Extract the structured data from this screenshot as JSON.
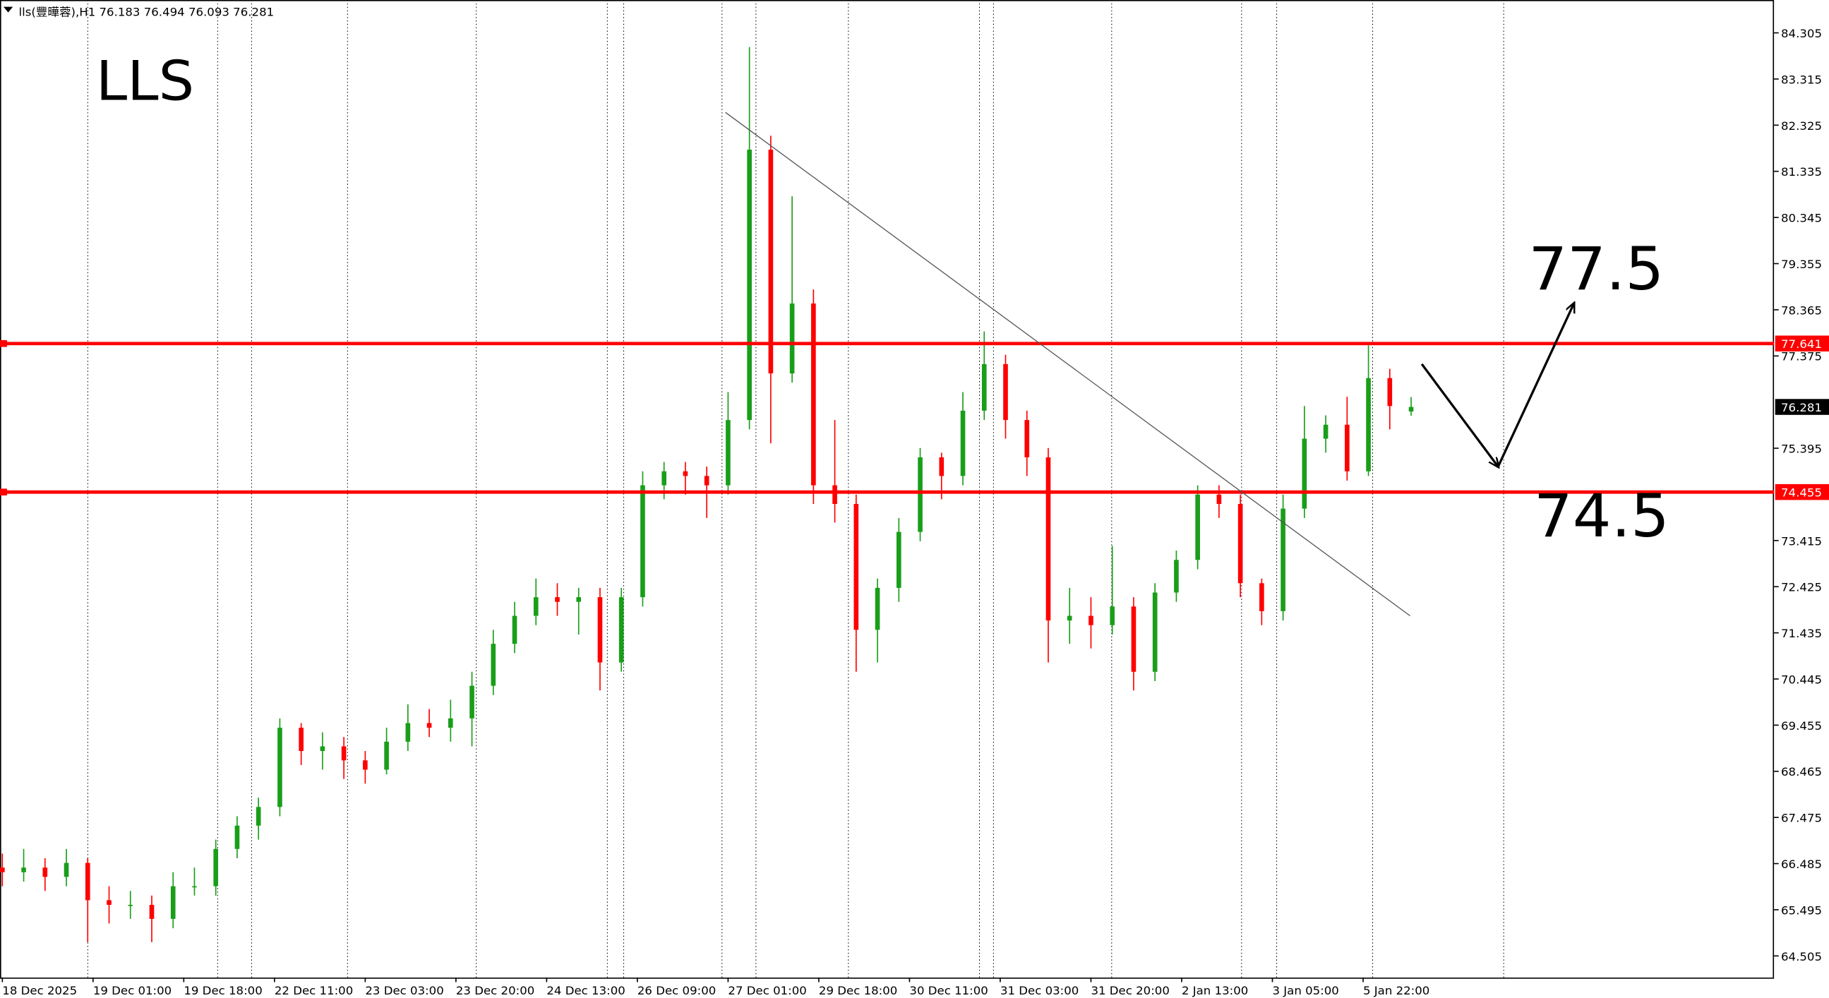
{
  "chart_data": {
    "type": "candlestick",
    "header": "lls(豐曄蓉),H1",
    "title": "LLS",
    "up_color": "#1a9e1a",
    "down_color": "#ff0000",
    "x": [
      0,
      4,
      8,
      12,
      16,
      20,
      24,
      28,
      32,
      36,
      40,
      44,
      48,
      52,
      56,
      60,
      64,
      68,
      72,
      76,
      80,
      84,
      88,
      92,
      96,
      100,
      104,
      108,
      112,
      116,
      120,
      124,
      128,
      132,
      136,
      140,
      144,
      148,
      152,
      156,
      160,
      164,
      168,
      172,
      176,
      180,
      184,
      188,
      192,
      196,
      200,
      204,
      208,
      212,
      216,
      220,
      224,
      228,
      232,
      236,
      240,
      244,
      248,
      252,
      256,
      260,
      264
    ],
    "open": [
      66.4,
      66.3,
      66.4,
      66.2,
      66.5,
      65.7,
      65.6,
      65.6,
      65.3,
      66.0,
      66.0,
      66.8,
      67.3,
      67.7,
      69.4,
      68.9,
      69.0,
      68.7,
      68.5,
      69.1,
      69.5,
      69.4,
      69.6,
      70.3,
      71.2,
      71.8,
      72.2,
      72.1,
      72.2,
      70.8,
      72.2,
      74.6,
      74.9,
      74.8,
      74.6,
      76.0,
      81.8,
      77.0,
      78.5,
      74.6,
      74.2,
      71.5,
      72.4,
      73.6,
      75.2,
      74.8,
      76.2,
      77.2,
      76.0,
      75.2,
      71.7,
      71.8,
      71.6,
      72.0,
      70.6,
      72.3,
      73.0,
      74.4,
      74.2,
      72.5,
      71.9,
      74.1,
      75.6,
      75.9,
      74.9,
      76.9,
      76.183
    ],
    "high": [
      66.7,
      66.8,
      66.6,
      66.8,
      66.6,
      66.0,
      65.9,
      65.8,
      66.3,
      66.4,
      67.0,
      67.5,
      67.9,
      69.6,
      69.5,
      69.3,
      69.2,
      68.9,
      69.4,
      69.9,
      69.8,
      70.0,
      70.6,
      71.5,
      72.1,
      72.6,
      72.5,
      72.4,
      72.4,
      72.4,
      74.9,
      75.1,
      75.1,
      75.0,
      76.6,
      84.0,
      82.1,
      80.8,
      78.8,
      76.0,
      74.4,
      72.6,
      73.9,
      75.4,
      75.3,
      76.6,
      77.9,
      77.4,
      76.2,
      75.4,
      72.4,
      72.2,
      73.3,
      72.2,
      72.5,
      73.2,
      74.6,
      74.6,
      74.4,
      72.6,
      74.4,
      76.3,
      76.1,
      76.5,
      77.6,
      77.1,
      76.494
    ],
    "low": [
      66.0,
      66.1,
      65.9,
      66.0,
      64.8,
      65.2,
      65.3,
      64.8,
      65.1,
      65.8,
      65.8,
      66.6,
      67.0,
      67.5,
      68.6,
      68.5,
      68.3,
      68.2,
      68.4,
      68.9,
      69.2,
      69.1,
      69.0,
      70.1,
      71.0,
      71.6,
      71.8,
      71.4,
      70.2,
      70.6,
      72.0,
      74.3,
      74.4,
      73.9,
      74.4,
      75.8,
      75.5,
      76.8,
      74.2,
      73.8,
      70.6,
      70.8,
      72.1,
      73.4,
      74.3,
      74.6,
      76.0,
      75.6,
      74.8,
      70.8,
      71.2,
      71.1,
      71.4,
      70.2,
      70.4,
      72.1,
      72.8,
      73.9,
      72.2,
      71.6,
      71.7,
      73.9,
      75.3,
      74.7,
      74.8,
      75.8,
      76.093
    ],
    "close": [
      66.3,
      66.4,
      66.2,
      66.5,
      65.7,
      65.6,
      65.6,
      65.3,
      66.0,
      66.0,
      66.8,
      67.3,
      67.7,
      69.4,
      68.9,
      69.0,
      68.7,
      68.5,
      69.1,
      69.5,
      69.4,
      69.6,
      70.3,
      71.2,
      71.8,
      72.2,
      72.1,
      72.2,
      70.8,
      72.2,
      74.6,
      74.9,
      74.8,
      74.6,
      76.0,
      81.8,
      77.0,
      78.5,
      74.6,
      74.2,
      71.5,
      72.4,
      73.6,
      75.2,
      74.8,
      76.2,
      77.2,
      76.0,
      75.2,
      71.7,
      71.8,
      71.6,
      72.0,
      70.6,
      72.3,
      73.0,
      74.4,
      74.2,
      72.5,
      71.9,
      74.1,
      75.6,
      75.9,
      74.9,
      76.9,
      76.3,
      76.281
    ],
    "xlim": [
      0,
      332
    ],
    "ylim": [
      64.04,
      85.01
    ],
    "xticks": [
      {
        "value": 0,
        "label": "18 Dec 2025"
      },
      {
        "value": 17,
        "label": "19 Dec 01:00"
      },
      {
        "value": 34,
        "label": "19 Dec 18:00"
      },
      {
        "value": 51,
        "label": "22 Dec 11:00"
      },
      {
        "value": 68,
        "label": "23 Dec 03:00"
      },
      {
        "value": 85,
        "label": "23 Dec 20:00"
      },
      {
        "value": 102,
        "label": "24 Dec 13:00"
      },
      {
        "value": 119,
        "label": "26 Dec 09:00"
      },
      {
        "value": 136,
        "label": "27 Dec 01:00"
      },
      {
        "value": 153,
        "label": "29 Dec 18:00"
      },
      {
        "value": 170,
        "label": "30 Dec 11:00"
      },
      {
        "value": 187,
        "label": "31 Dec 03:00"
      },
      {
        "value": 204,
        "label": "31 Dec 20:00"
      },
      {
        "value": 221,
        "label": "2 Jan 13:00"
      },
      {
        "value": 238,
        "label": "3 Jan 05:00"
      },
      {
        "value": 255,
        "label": "5 Jan 22:00"
      }
    ],
    "yticks": [
      64.505,
      65.495,
      66.485,
      67.475,
      68.465,
      69.455,
      70.445,
      71.435,
      72.425,
      73.415,
      75.395,
      77.375,
      78.365,
      79.355,
      80.345,
      81.335,
      82.325,
      83.315,
      84.305
    ],
    "hlines": [
      {
        "value": 77.641,
        "color": "#ff0000"
      },
      {
        "value": 74.455,
        "color": "#ff0000"
      }
    ],
    "trendline": {
      "x": [
        135.5,
        263.8
      ],
      "y": [
        82.6,
        71.8
      ]
    },
    "projection": {
      "x": [
        266,
        280.3,
        294.5
      ],
      "y": [
        77.2,
        75.0,
        78.5
      ]
    },
    "annotations": [
      {
        "text": "77.5",
        "x": 286,
        "y": 78.8
      },
      {
        "text": "74.5",
        "x": 287,
        "y": 73.5
      }
    ]
  }
}
